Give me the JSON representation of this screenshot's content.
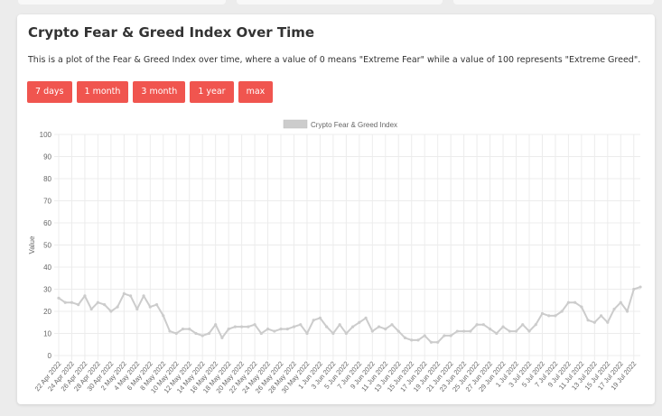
{
  "page": {
    "title": "Crypto Fear & Greed Index Over Time",
    "description": "This is a plot of the Fear & Greed Index over time, where a value of 0 means \"Extreme Fear\" while a value of 100 represents \"Extreme Greed\"."
  },
  "range_buttons": [
    "7 days",
    "1 month",
    "3 month",
    "1 year",
    "max"
  ],
  "colors": {
    "button": "#f0554f",
    "line": "#cccccc",
    "grid": "#ececec",
    "text": "#666666"
  },
  "chart_data": {
    "type": "line",
    "title": "",
    "ylabel": "Value",
    "xlabel": "",
    "ylim": [
      0,
      100
    ],
    "y_ticks": [
      0,
      10,
      20,
      30,
      40,
      50,
      60,
      70,
      80,
      90,
      100
    ],
    "grid": true,
    "legend_position": "top",
    "series": [
      {
        "name": "Crypto Fear & Greed Index",
        "values": [
          26,
          24,
          24,
          23,
          27,
          21,
          24,
          23,
          20,
          22,
          28,
          27,
          21,
          27,
          22,
          23,
          18,
          11,
          10,
          12,
          12,
          10,
          9,
          10,
          14,
          8,
          12,
          13,
          13,
          13,
          14,
          10,
          12,
          11,
          12,
          12,
          13,
          14,
          10,
          16,
          17,
          13,
          10,
          14,
          10,
          13,
          15,
          17,
          11,
          13,
          12,
          14,
          11,
          8,
          7,
          7,
          9,
          6,
          6,
          9,
          9,
          11,
          11,
          11,
          14,
          14,
          12,
          10,
          13,
          11,
          11,
          14,
          11,
          14,
          19,
          18,
          18,
          20,
          24,
          24,
          22,
          16,
          15,
          18,
          15,
          21,
          24,
          20,
          30,
          31
        ]
      }
    ],
    "x_tick_labels": [
      "22 Apr 2022",
      "24 Apr 2022",
      "26 Apr 2022",
      "28 Apr 2022",
      "30 Apr 2022",
      "2 May 2022",
      "4 May 2022",
      "6 May 2022",
      "8 May 2022",
      "10 May 2022",
      "12 May 2022",
      "14 May 2022",
      "16 May 2022",
      "18 May 2022",
      "20 May 2022",
      "22 May 2022",
      "24 May 2022",
      "26 May 2022",
      "28 May 2022",
      "30 May 2022",
      "1 Jun 2022",
      "3 Jun 2022",
      "5 Jun 2022",
      "7 Jun 2022",
      "9 Jun 2022",
      "11 Jun 2022",
      "13 Jun 2022",
      "15 Jun 2022",
      "17 Jun 2022",
      "19 Jun 2022",
      "21 Jun 2022",
      "23 Jun 2022",
      "25 Jun 2022",
      "27 Jun 2022",
      "29 Jun 2022",
      "1 Jul 2022",
      "3 Jul 2022",
      "5 Jul 2022",
      "7 Jul 2022",
      "9 Jul 2022",
      "11 Jul 2022",
      "13 Jul 2022",
      "15 Jul 2022",
      "17 Jul 2022",
      "19 Jul 2022"
    ]
  }
}
